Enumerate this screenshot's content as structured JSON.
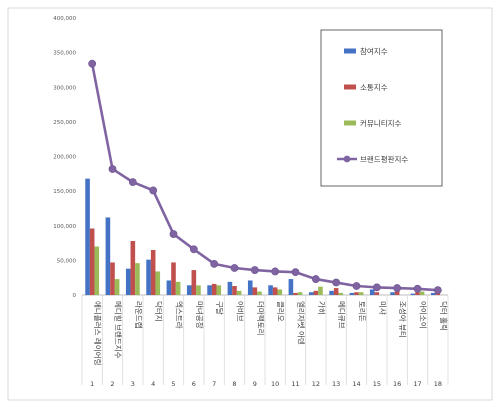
{
  "chart_data": {
    "type": "bar",
    "title": "",
    "xlabel": "",
    "ylabel": "",
    "ylim": [
      0,
      400000
    ],
    "yticks": [
      "0",
      "50,000",
      "100,000",
      "150,000",
      "200,000",
      "250,000",
      "300,000",
      "350,000",
      "400,000"
    ],
    "grid": false,
    "legend_position": "top-right",
    "categories": [
      "1",
      "2",
      "3",
      "4",
      "5",
      "6",
      "7",
      "8",
      "9",
      "10",
      "11",
      "12",
      "13",
      "14",
      "15",
      "16",
      "17",
      "18"
    ],
    "category_labels": [
      "애니플러스 레이어링",
      "메디힐 브랜드지수",
      "라운드랩",
      "닥터지",
      "엑스트라",
      "마녀공장",
      "구달",
      "아비브",
      "더마팩토리",
      "클리오",
      "엘리자벳 아덴",
      "가히",
      "메디큐브",
      "토리든",
      "미샤",
      "조성아 뷰티",
      "아이소이",
      "닥터 홀릭"
    ],
    "series": [
      {
        "name": "참여지수",
        "color": "#4472C4",
        "values": [
          168000,
          112000,
          38000,
          51000,
          21000,
          14000,
          14000,
          19000,
          21000,
          14000,
          23000,
          4000,
          6000,
          3000,
          8000,
          4000,
          2000,
          3000
        ]
      },
      {
        "name": "소통지수",
        "color": "#C0504D",
        "values": [
          96000,
          47000,
          78000,
          65000,
          47000,
          36000,
          16000,
          13000,
          11000,
          11000,
          3000,
          6000,
          10000,
          4000,
          4000,
          9000,
          4000,
          4000
        ]
      },
      {
        "name": "커뮤니티지수",
        "color": "#9BBB59",
        "values": [
          70000,
          23000,
          46000,
          34000,
          19000,
          14000,
          14000,
          6000,
          5000,
          8000,
          4000,
          12000,
          3000,
          4000,
          0,
          0,
          5000,
          0
        ]
      },
      {
        "name": "브랜드평판지수",
        "color": "#8064A2",
        "type": "line",
        "values": [
          334000,
          182000,
          163000,
          151000,
          88000,
          66000,
          45000,
          39000,
          36000,
          34000,
          33000,
          23000,
          18000,
          13000,
          11000,
          10000,
          9000,
          7000
        ]
      }
    ]
  }
}
